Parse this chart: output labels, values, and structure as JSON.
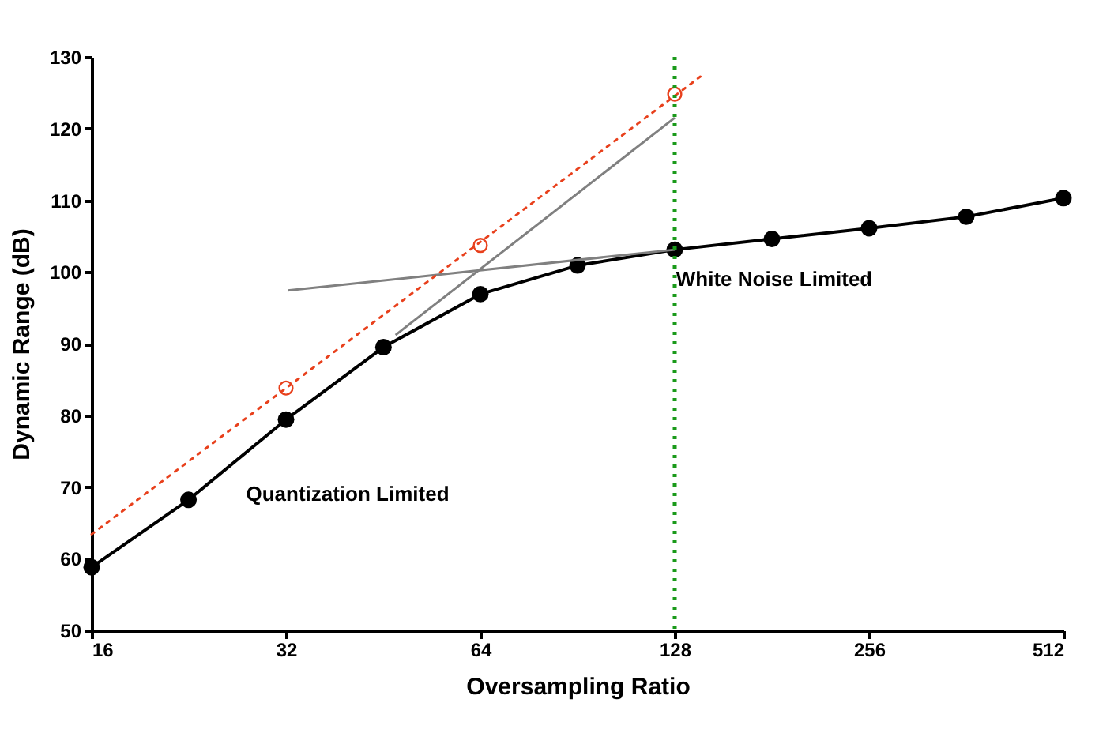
{
  "chart_data": {
    "type": "line",
    "xlabel": "Oversampling Ratio",
    "ylabel": "Dynamic Range (dB)",
    "log": "x",
    "xlim": [
      16,
      512
    ],
    "xticks": [
      16,
      32,
      64,
      128,
      256,
      512
    ],
    "ylim": [
      50,
      130
    ],
    "yticks": [
      50,
      60,
      70,
      80,
      90,
      100,
      110,
      120,
      130
    ],
    "grid": false,
    "legend": false,
    "series": [
      {
        "color": "#000000",
        "marker": "circle",
        "line_style": "solid",
        "x": [
          16,
          22.6,
          32,
          45.3,
          64,
          90.5,
          128,
          181,
          256,
          362,
          512
        ],
        "values": [
          58.8,
          68.2,
          79.4,
          89.5,
          96.9,
          100.9,
          103.1,
          104.6,
          106.1,
          107.7,
          110.3
        ]
      },
      {
        "color": "#808080",
        "marker": "none",
        "line_style": "solid",
        "x": [
          47.3,
          128
        ],
        "values": [
          91.2,
          121.5
        ]
      },
      {
        "color": "#808080",
        "marker": "none",
        "line_style": "solid",
        "x": [
          32.2,
          128
        ],
        "values": [
          97.4,
          103.1
        ]
      },
      {
        "color": "#e8401c",
        "marker": "none",
        "line_style": "dotted",
        "x": [
          16,
          141
        ],
        "values": [
          63.4,
          127.4
        ]
      },
      {
        "type": "scatter",
        "color": "#e8401c",
        "marker": "circle",
        "x": [
          32,
          64,
          128
        ],
        "values": [
          83.8,
          103.7,
          124.8
        ]
      }
    ],
    "ref_lines": [
      {
        "axis": "x",
        "value": 128,
        "color": "#1a9a1a",
        "line_style": "dotted"
      }
    ],
    "annotations": [
      "Quantization Limited",
      "White Noise Limited"
    ]
  }
}
